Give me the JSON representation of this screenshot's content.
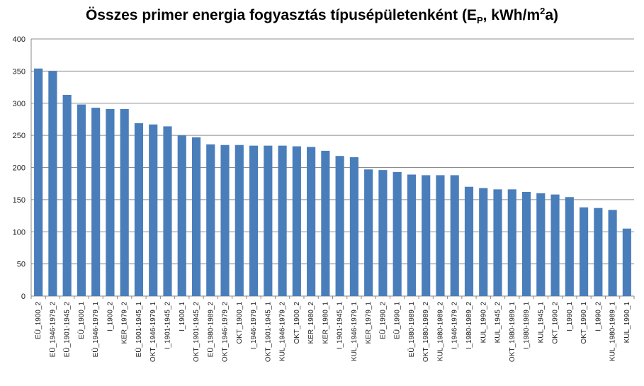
{
  "chart_data": {
    "type": "bar",
    "title_prefix": "Összes primer energia fogyasztás típusépületenként (E",
    "title_sub": "P",
    "title_mid": ", kWh/m",
    "title_sup": "2",
    "title_suffix": "a)",
    "xlabel": "",
    "ylabel": "",
    "ylim": [
      0,
      400
    ],
    "yticks": [
      0,
      50,
      100,
      150,
      200,
      250,
      300,
      350,
      400
    ],
    "grid": true,
    "legend": "none",
    "bar_color": "#4A7EBB",
    "categories": [
      "EÜ_1900_2",
      "EÜ_1946-1979_2",
      "EÜ_1901-1945_2",
      "EÜ_1900_1",
      "EÜ_1946-1979_1",
      "I_1900_2",
      "KER_1979_2",
      "EÜ_1901-1945_1",
      "OKT_1946-1979_1",
      "I_1901-1945_2",
      "I_1900_1",
      "OKT_1901-1945_2",
      "EÜ_1980-1989_2",
      "OKT_1946-1979_2",
      "OKT_1900_1",
      "I_1946-1979_1",
      "OKT_1901-1945_1",
      "KUL_1946-1979_2",
      "OKT_1900_2",
      "KER_1980_2",
      "KER_1980_1",
      "I_1901-1945_1",
      "KUL_1946-1979_1",
      "KER_1979_1",
      "EÜ_1990_2",
      "EÜ_1990_1",
      "EÜ_1980-1989_1",
      "OKT_1980-1989_2",
      "KUL_1980-1989_2",
      "I_1946-1979_2",
      "I_1980-1989_2",
      "KUL_1990_2",
      "KUL_1945_2",
      "OKT_1980-1989_1",
      "I_1980-1989_1",
      "KUL_1945_1",
      "OKT_1990_2",
      "I_1990_1",
      "OKT_1990_1",
      "I_1990_2",
      "KUL_1980-1989_1",
      "KUL_1990_1"
    ],
    "values": [
      354,
      350,
      313,
      298,
      293,
      291,
      291,
      269,
      267,
      264,
      250,
      247,
      236,
      235,
      235,
      234,
      234,
      234,
      233,
      232,
      226,
      218,
      216,
      197,
      196,
      193,
      189,
      188,
      188,
      188,
      170,
      168,
      166,
      166,
      162,
      160,
      158,
      154,
      138,
      137,
      134,
      105
    ]
  }
}
